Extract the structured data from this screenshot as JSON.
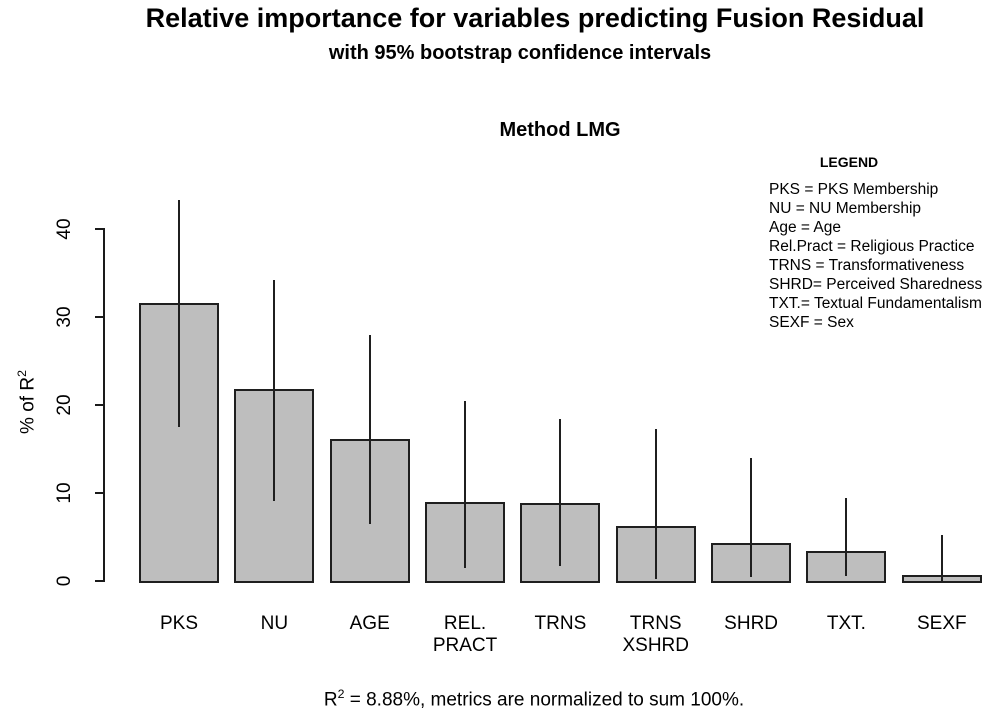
{
  "header": {
    "title": "Relative importance for variables predicting Fusion Residual",
    "subtitle": "with 95% bootstrap confidence intervals",
    "panel_title": "Method LMG"
  },
  "axis": {
    "ylabel_base": "% of R",
    "ylabel_sup": "2"
  },
  "legend": {
    "title": "LEGEND",
    "items": [
      "PKS = PKS Membership",
      "NU = NU Membership",
      "Age = Age",
      "Rel.Pract = Religious Practice",
      "TRNS = Transformativeness",
      "SHRD= Perceived Sharedness",
      "TXT.= Textual Fundamentalism",
      "SEXF = Sex"
    ]
  },
  "caption": {
    "r": "R",
    "sup": "2",
    "rest": " = 8.88%, metrics are normalized to sum 100%."
  },
  "chart_data": {
    "type": "bar",
    "title": "Relative importance for variables predicting Fusion Residual",
    "subtitle": "with 95% bootstrap confidence intervals",
    "panel_title": "Method LMG",
    "ylabel": "% of R2",
    "ylim": [
      0,
      45
    ],
    "yticks": [
      0,
      10,
      20,
      30,
      40
    ],
    "grid": false,
    "legend_position": "top-right",
    "categories": [
      "PKS",
      "NU",
      "AGE",
      "REL. PRACT",
      "TRNS",
      "TRNS XSHRD",
      "SHRD",
      "TXT.",
      "SEXF"
    ],
    "category_lines": [
      [
        "PKS"
      ],
      [
        "NU"
      ],
      [
        "AGE"
      ],
      [
        "REL.",
        "PRACT"
      ],
      [
        "TRNS"
      ],
      [
        "TRNS",
        "XSHRD"
      ],
      [
        "SHRD"
      ],
      [
        "TXT."
      ],
      [
        "SEXF"
      ]
    ],
    "values": [
      31.4,
      21.6,
      15.9,
      8.8,
      8.6,
      6.0,
      4.1,
      3.2,
      0.4
    ],
    "ci_lower": [
      17.5,
      9.1,
      6.5,
      1.5,
      1.7,
      0.2,
      0.4,
      0.6,
      0.0
    ],
    "ci_upper": [
      43.3,
      34.2,
      28.0,
      20.5,
      18.4,
      17.3,
      14.0,
      9.4,
      5.2
    ],
    "bar_fill": "#bebebe",
    "bar_border": "#1f1f1f",
    "caption": "R2 = 8.88%, metrics are normalized to sum 100%."
  }
}
